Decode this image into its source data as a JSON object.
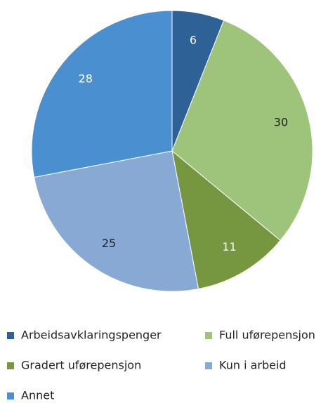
{
  "chart_data": {
    "type": "pie",
    "categories": [
      "Arbeidsavklaringspenger",
      "Full uførepensjon",
      "Gradert uførepensjon",
      "Kun i arbeid",
      "Annet"
    ],
    "values": [
      6,
      30,
      11,
      25,
      28
    ],
    "colors": [
      "#2e6195",
      "#9dc47a",
      "#76963f",
      "#87a9d4",
      "#4a90d0"
    ],
    "legend": "bottom"
  }
}
